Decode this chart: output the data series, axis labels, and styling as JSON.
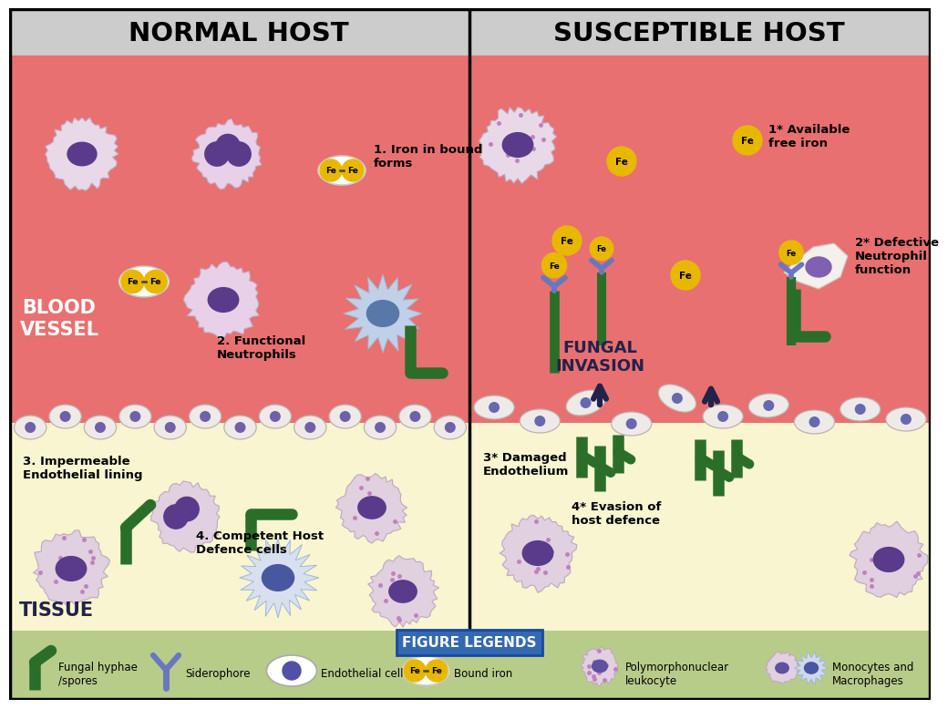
{
  "title_left": "NORMAL HOST",
  "title_right": "SUSCEPTIBLE HOST",
  "bg_header": "#d0d0d0",
  "bg_blood": "#e8706a",
  "bg_tissue": "#f8f5d0",
  "bg_legend": "#b8cc8a",
  "endothelial_color": "#f0eeec",
  "cell_nucleus": "#5a3a8a",
  "fe_color": "#e8b800",
  "green_hyphae": "#2a6e2a",
  "siderophore_color": "#6878c0",
  "dark_navy": "#22224a",
  "label_1_normal": "1. Iron in bound\nforms",
  "label_2_normal": "2. Functional\nNeutrophils",
  "label_3_normal": "3. Impermeable\nEndothelial lining",
  "label_4_normal": "4. Competent Host\nDefence cells",
  "label_1_susceptible": "1* Available\nfree iron",
  "label_2_susceptible": "2* Defective\nNeutrophil\nfunction",
  "label_3_susceptible": "3* Damaged\nEndothelium",
  "label_4_susceptible": "4* Evasion of\nhost defence",
  "label_fungal_invasion": "FUNGAL\nINVASION",
  "label_blood_vessel": "BLOOD\nVESSEL",
  "label_tissue_left": "TISSUE",
  "legend_title": "FIGURE LEGENDS",
  "legend_items": [
    "Fungal hyphae\n/spores",
    "Siderophore",
    "Endothelial cell",
    "Bound iron",
    "Polymorphonuclear\nleukocyte",
    "Monocytes and\nMacrophages"
  ]
}
